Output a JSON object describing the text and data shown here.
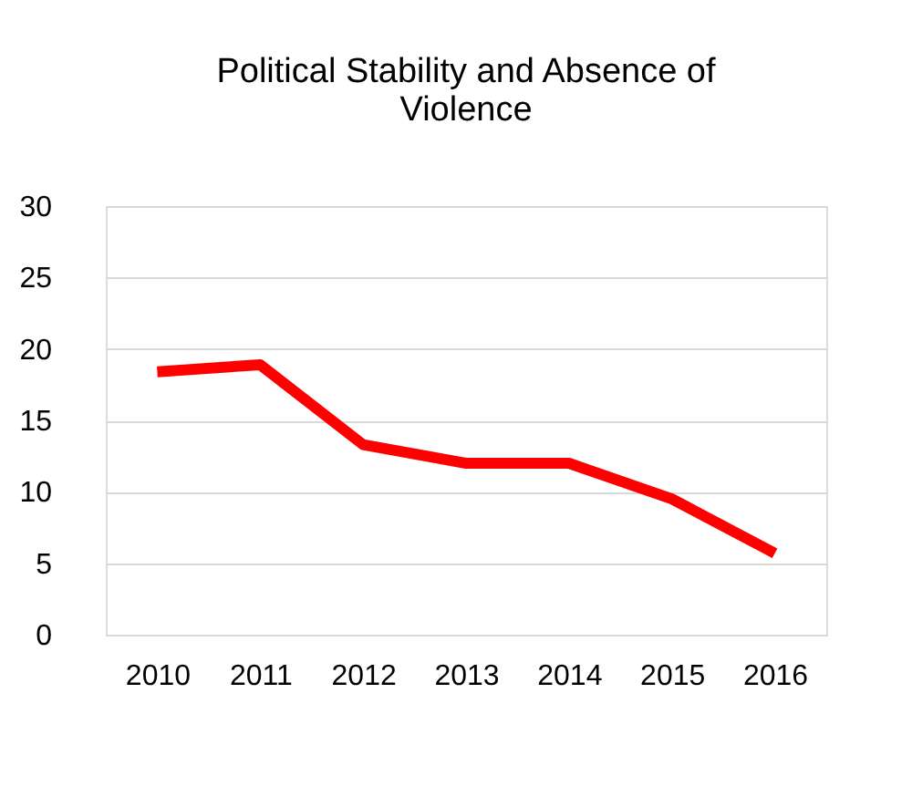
{
  "chart_data": {
    "type": "line",
    "title": [
      "Political Stability and Absence of",
      "Violence"
    ],
    "categories": [
      "2010",
      "2011",
      "2012",
      "2013",
      "2014",
      "2015",
      "2016"
    ],
    "series": [
      {
        "color": "#ff0000",
        "values": [
          18.4,
          18.9,
          13.3,
          12.0,
          12.0,
          9.5,
          5.7
        ]
      }
    ],
    "ylim": [
      0,
      30
    ],
    "yticks": [
      0,
      5,
      10,
      15,
      20,
      25,
      30
    ],
    "grid": "y",
    "legend": false,
    "marker": "none",
    "line_style": "solid"
  }
}
